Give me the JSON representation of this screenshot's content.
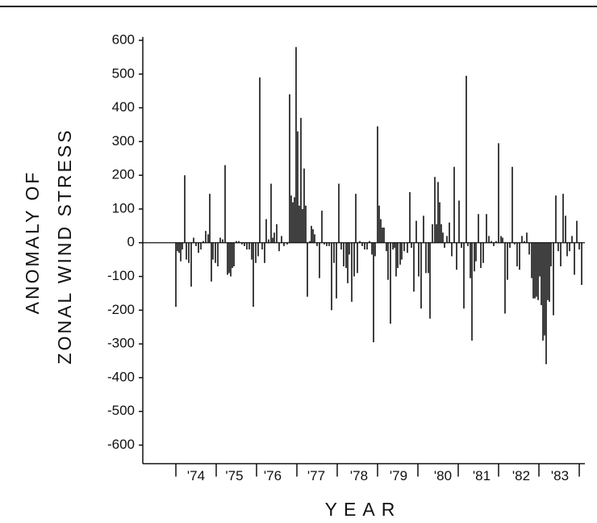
{
  "chart_data": {
    "type": "bar",
    "ylabel": [
      "ANOMALY OF",
      "ZONAL WIND STRESS"
    ],
    "xlabel": "YEAR",
    "color": "#111111",
    "xlim": [
      1973.18,
      1984.14
    ],
    "ylim": [
      -655,
      610
    ],
    "yticks": [
      -600,
      -500,
      -400,
      -300,
      -200,
      -100,
      0,
      100,
      200,
      300,
      400,
      500,
      600
    ],
    "xtick_marks": [
      1974,
      1975,
      1976,
      1977,
      1978,
      1979,
      1980,
      1981,
      1982,
      1983,
      1984
    ],
    "xticks": [
      {
        "value": 1974.5,
        "label": "'74"
      },
      {
        "value": 1975.45,
        "label": "'75"
      },
      {
        "value": 1976.4,
        "label": "'76"
      },
      {
        "value": 1977.48,
        "label": "'77"
      },
      {
        "value": 1978.54,
        "label": "'78"
      },
      {
        "value": 1979.52,
        "label": "'79"
      },
      {
        "value": 1980.62,
        "label": "'80"
      },
      {
        "value": 1981.58,
        "label": "'81"
      },
      {
        "value": 1982.56,
        "label": "'82"
      },
      {
        "value": 1983.52,
        "label": "'83"
      }
    ],
    "x": [
      1974.0,
      1974.04,
      1974.08,
      1974.12,
      1974.16,
      1974.22,
      1974.26,
      1974.32,
      1974.38,
      1974.44,
      1974.5,
      1974.56,
      1974.62,
      1974.68,
      1974.74,
      1974.8,
      1974.84,
      1974.88,
      1974.92,
      1974.98,
      1975.04,
      1975.1,
      1975.16,
      1975.22,
      1975.28,
      1975.32,
      1975.36,
      1975.4,
      1975.44,
      1975.5,
      1975.56,
      1975.64,
      1975.7,
      1975.76,
      1975.82,
      1975.88,
      1975.92,
      1975.98,
      1976.04,
      1976.08,
      1976.14,
      1976.2,
      1976.24,
      1976.3,
      1976.36,
      1976.4,
      1976.44,
      1976.5,
      1976.56,
      1976.62,
      1976.68,
      1976.76,
      1976.82,
      1976.86,
      1976.9,
      1976.94,
      1976.98,
      1977.02,
      1977.06,
      1977.1,
      1977.14,
      1977.18,
      1977.22,
      1977.26,
      1977.32,
      1977.36,
      1977.4,
      1977.44,
      1977.5,
      1977.56,
      1977.62,
      1977.68,
      1977.74,
      1977.8,
      1977.86,
      1977.92,
      1977.98,
      1978.04,
      1978.1,
      1978.16,
      1978.22,
      1978.26,
      1978.3,
      1978.36,
      1978.42,
      1978.46,
      1978.5,
      1978.56,
      1978.62,
      1978.68,
      1978.74,
      1978.8,
      1978.86,
      1978.9,
      1978.94,
      1979.0,
      1979.04,
      1979.08,
      1979.12,
      1979.16,
      1979.22,
      1979.26,
      1979.32,
      1979.38,
      1979.42,
      1979.46,
      1979.5,
      1979.56,
      1979.6,
      1979.66,
      1979.74,
      1979.8,
      1979.84,
      1979.9,
      1979.96,
      1980.02,
      1980.08,
      1980.14,
      1980.2,
      1980.26,
      1980.3,
      1980.36,
      1980.42,
      1980.46,
      1980.5,
      1980.54,
      1980.58,
      1980.62,
      1980.66,
      1980.72,
      1980.78,
      1980.84,
      1980.9,
      1980.96,
      1981.02,
      1981.08,
      1981.14,
      1981.2,
      1981.24,
      1981.3,
      1981.34,
      1981.4,
      1981.44,
      1981.5,
      1981.56,
      1981.62,
      1981.7,
      1981.76,
      1981.82,
      1981.88,
      1981.94,
      1982.0,
      1982.06,
      1982.1,
      1982.16,
      1982.22,
      1982.28,
      1982.34,
      1982.4,
      1982.46,
      1982.52,
      1982.58,
      1982.64,
      1982.7,
      1982.76,
      1982.82,
      1982.86,
      1982.9,
      1982.94,
      1982.98,
      1983.02,
      1983.06,
      1983.1,
      1983.14,
      1983.18,
      1983.22,
      1983.26,
      1983.3,
      1983.36,
      1983.42,
      1983.48,
      1983.54,
      1983.6,
      1983.66,
      1983.7,
      1983.76,
      1983.82,
      1983.88,
      1983.94,
      1984.0,
      1984.06
    ],
    "values": [
      -190,
      -25,
      -30,
      -55,
      -20,
      200,
      -50,
      -60,
      -130,
      15,
      -10,
      -30,
      -20,
      5,
      35,
      25,
      145,
      -115,
      -50,
      -60,
      -70,
      15,
      10,
      230,
      -95,
      -90,
      -100,
      -75,
      -70,
      5,
      5,
      -5,
      -10,
      -20,
      -20,
      -50,
      -190,
      -60,
      -40,
      490,
      -20,
      -60,
      70,
      10,
      175,
      15,
      30,
      55,
      -25,
      20,
      -10,
      -5,
      440,
      140,
      120,
      135,
      580,
      330,
      110,
      370,
      100,
      220,
      110,
      -160,
      5,
      50,
      40,
      25,
      -10,
      -105,
      95,
      -5,
      -10,
      -10,
      -200,
      -60,
      -165,
      175,
      -20,
      -70,
      -75,
      -120,
      -35,
      -175,
      -100,
      145,
      -90,
      5,
      -10,
      -20,
      -20,
      5,
      -35,
      -295,
      -40,
      345,
      110,
      70,
      45,
      45,
      -25,
      -110,
      -240,
      -20,
      -15,
      -100,
      -75,
      -65,
      -50,
      -25,
      -30,
      150,
      -15,
      -145,
      65,
      -100,
      -195,
      80,
      -90,
      -90,
      -225,
      55,
      195,
      55,
      180,
      120,
      55,
      30,
      -15,
      20,
      60,
      -40,
      225,
      -80,
      125,
      -15,
      -195,
      495,
      -10,
      -105,
      -290,
      -85,
      -55,
      85,
      -75,
      -60,
      85,
      20,
      5,
      -10,
      5,
      295,
      20,
      15,
      -210,
      -110,
      -15,
      225,
      -5,
      -70,
      -80,
      20,
      5,
      30,
      -35,
      -105,
      -165,
      -165,
      -160,
      -170,
      -100,
      -185,
      -290,
      -275,
      -360,
      -170,
      -175,
      -70,
      -215,
      140,
      -25,
      -70,
      145,
      80,
      -40,
      -25,
      20,
      -95,
      65,
      -20,
      -125
    ]
  }
}
